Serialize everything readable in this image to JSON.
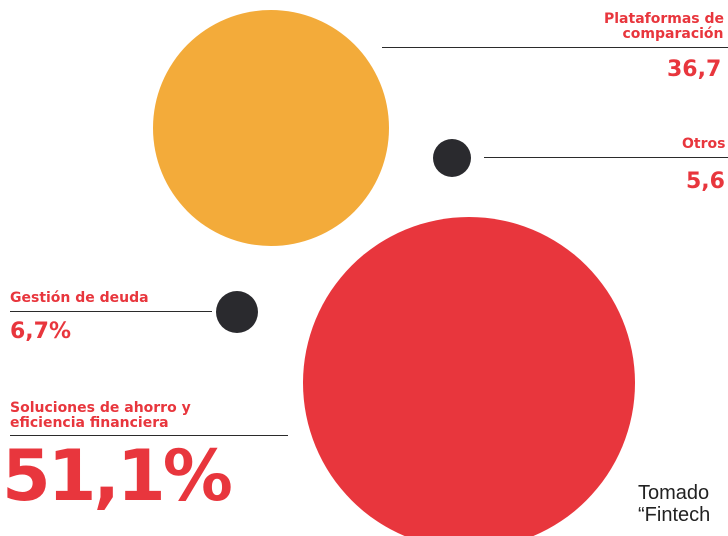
{
  "chart_data": {
    "type": "bubble",
    "series": [
      {
        "category": "Plataformas de comparación",
        "value_label": "36,7",
        "value": 36.7,
        "color": "#f3ab3a"
      },
      {
        "category": "Otros",
        "value_label": "5,6",
        "value": 5.6,
        "color": "#2a2a2e"
      },
      {
        "category": "Gestión de deuda",
        "value_label": "6,7%",
        "value": 6.7,
        "color": "#2a2a2e"
      },
      {
        "category": "Soluciones de ahorro y eficiencia financiera",
        "value_label": "51,1%",
        "value": 51.1,
        "color": "#e8363d"
      }
    ]
  },
  "labels": {
    "plataformas_line1": "Plataformas de",
    "plataformas_line2": "comparación",
    "plataformas_value": "36,7",
    "otros_name": "Otros",
    "otros_value": "5,6",
    "gestion_name": "Gestión de deuda",
    "gestion_value": "6,7%",
    "soluciones_line1": "Soluciones de ahorro y",
    "soluciones_line2": "eficiencia financiera",
    "soluciones_value": "51,1%"
  },
  "source": {
    "line1": "Tomado",
    "line2": "“Fintech"
  },
  "colors": {
    "accent_red": "#e8363d",
    "orange": "#f3ab3a",
    "dark": "#2a2a2e"
  }
}
